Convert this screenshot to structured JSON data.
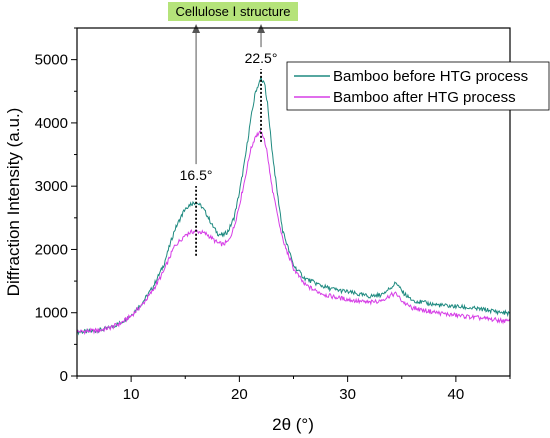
{
  "chart_data": {
    "type": "line",
    "title": "",
    "xlabel": "2θ (°)",
    "ylabel": "Diffraction Intensity (a.u.)",
    "xlim": [
      5,
      45
    ],
    "ylim": [
      0,
      5500
    ],
    "xticks": [
      10,
      20,
      30,
      40
    ],
    "yticks": [
      0,
      1000,
      2000,
      3000,
      4000,
      5000
    ],
    "grid": false,
    "legend_position": "top-right",
    "banner": "Cellulose Ⅰ structure",
    "annotations": [
      {
        "label": "16.5°",
        "x": 16.0,
        "y_low": 1900,
        "y_high": 3000
      },
      {
        "label": "22.5°",
        "x": 22.0,
        "y_low": 3700,
        "y_high": 4850
      }
    ],
    "series": [
      {
        "name": "Bamboo before HTG process",
        "color": "#1f8a80",
        "x": [
          5,
          6,
          7,
          8,
          9,
          10,
          11,
          12,
          13,
          14,
          15,
          15.5,
          16,
          16.5,
          17,
          17.5,
          18,
          18.5,
          19,
          19.5,
          20,
          20.5,
          21,
          21.5,
          22,
          22.3,
          22.6,
          23,
          23.5,
          24,
          25,
          26,
          27,
          28,
          29,
          30,
          31,
          32,
          33,
          33.5,
          34,
          34.5,
          35,
          35.5,
          36,
          37,
          38,
          39,
          40,
          41,
          42,
          43,
          44,
          45
        ],
        "y": [
          700,
          700,
          720,
          760,
          840,
          960,
          1150,
          1400,
          1750,
          2300,
          2650,
          2720,
          2750,
          2680,
          2550,
          2380,
          2250,
          2220,
          2300,
          2500,
          2900,
          3400,
          4000,
          4500,
          4700,
          4650,
          4300,
          3600,
          2900,
          2300,
          1750,
          1550,
          1470,
          1400,
          1360,
          1330,
          1290,
          1260,
          1280,
          1330,
          1400,
          1480,
          1340,
          1260,
          1200,
          1160,
          1130,
          1110,
          1100,
          1080,
          1060,
          1040,
          1010,
          990
        ]
      },
      {
        "name": "Bamboo after HTG process",
        "color": "#d63ee6",
        "x": [
          5,
          6,
          7,
          8,
          9,
          10,
          11,
          12,
          13,
          14,
          15,
          15.5,
          16,
          16.5,
          17,
          17.5,
          18,
          18.5,
          19,
          19.5,
          20,
          20.5,
          21,
          21.5,
          22,
          22.3,
          22.6,
          23,
          23.5,
          24,
          25,
          26,
          27,
          28,
          29,
          30,
          31,
          32,
          33,
          33.5,
          34,
          34.5,
          35,
          35.5,
          36,
          37,
          38,
          39,
          40,
          41,
          42,
          43,
          44,
          45
        ],
        "y": [
          700,
          710,
          720,
          760,
          830,
          950,
          1120,
          1350,
          1650,
          2050,
          2230,
          2270,
          2290,
          2270,
          2240,
          2170,
          2100,
          2080,
          2130,
          2350,
          2700,
          3100,
          3550,
          3800,
          3850,
          3750,
          3500,
          3000,
          2550,
          2150,
          1700,
          1450,
          1350,
          1280,
          1240,
          1210,
          1180,
          1160,
          1190,
          1230,
          1280,
          1300,
          1190,
          1120,
          1080,
          1040,
          1010,
          980,
          960,
          940,
          920,
          900,
          880,
          860
        ]
      }
    ]
  }
}
